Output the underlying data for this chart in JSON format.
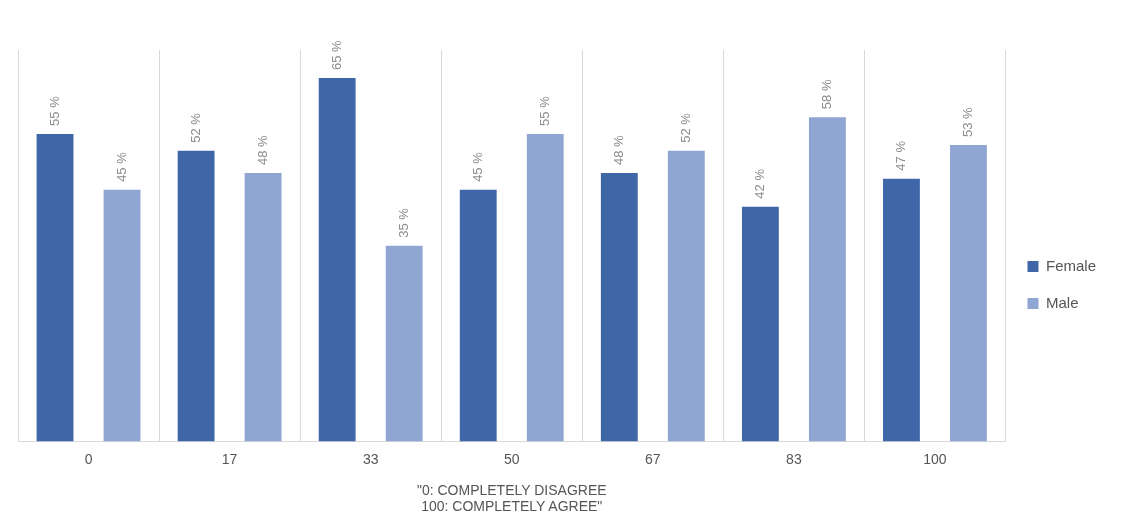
{
  "chart_data": {
    "type": "bar",
    "xlabel": "\"0: COMPLETELY DISAGREE\n100: COMPLETELY AGREE\"",
    "categories": [
      "0",
      "17",
      "33",
      "50",
      "67",
      "83",
      "100"
    ],
    "series": [
      {
        "name": "Female",
        "color": "#3f67a8",
        "values": [
          55,
          52,
          65,
          45,
          48,
          42,
          47
        ],
        "value_labels": [
          "55 %",
          "52 %",
          "65 %",
          "45 %",
          "48 %",
          "42 %",
          "47 %"
        ]
      },
      {
        "name": "Male",
        "color": "#8fa6d3",
        "values": [
          45,
          48,
          35,
          55,
          52,
          58,
          53
        ],
        "value_labels": [
          "45 %",
          "48 %",
          "35 %",
          "55 %",
          "52 %",
          "58 %",
          "53 %"
        ]
      }
    ],
    "grid": "x",
    "legend": "right",
    "relative": false
  }
}
